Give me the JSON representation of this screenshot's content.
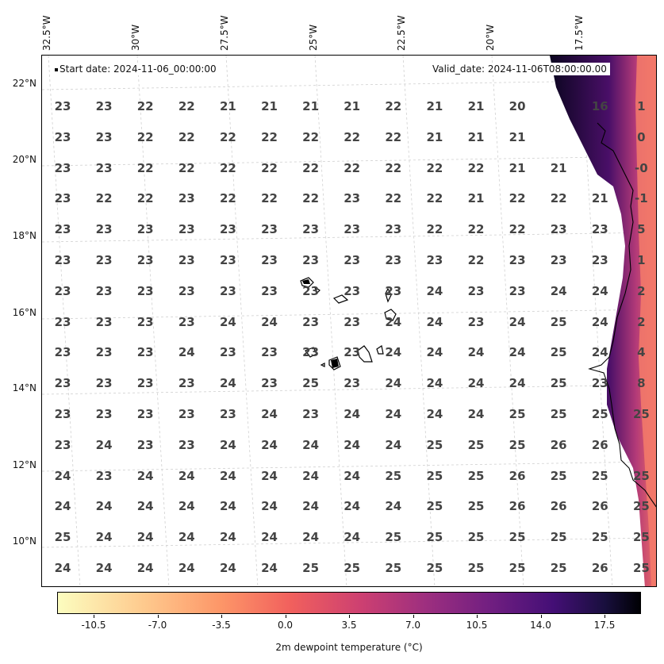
{
  "map": {
    "start_date_label": "Start date: 2024-11-06_00:00:00",
    "valid_date_label": "Valid_date: 2024-11-06T08:00:00.00",
    "variable": "2m dewpoint temperature",
    "lon_labels": [
      "32.5°W",
      "30°W",
      "27.5°W",
      "25°W",
      "22.5°W",
      "20°W",
      "17.5°W"
    ],
    "lat_labels": [
      "22°N",
      "20°N",
      "18°N",
      "16°N",
      "14°N",
      "12°N",
      "10°N"
    ],
    "grid_values": [
      [
        "23",
        "23",
        "22",
        "22",
        "21",
        "21",
        "21",
        "21",
        "22",
        "21",
        "21",
        "20",
        "",
        "16",
        "1"
      ],
      [
        "23",
        "23",
        "22",
        "22",
        "22",
        "22",
        "22",
        "22",
        "22",
        "21",
        "21",
        "21",
        "",
        "",
        "0"
      ],
      [
        "23",
        "23",
        "22",
        "22",
        "22",
        "22",
        "22",
        "22",
        "22",
        "22",
        "22",
        "21",
        "21",
        "",
        "-0"
      ],
      [
        "23",
        "22",
        "22",
        "23",
        "22",
        "22",
        "22",
        "23",
        "22",
        "22",
        "21",
        "22",
        "22",
        "21",
        "-1"
      ],
      [
        "23",
        "23",
        "23",
        "23",
        "23",
        "23",
        "23",
        "23",
        "23",
        "22",
        "22",
        "22",
        "23",
        "23",
        "5"
      ],
      [
        "23",
        "23",
        "23",
        "23",
        "23",
        "23",
        "23",
        "23",
        "23",
        "23",
        "22",
        "23",
        "23",
        "23",
        "1"
      ],
      [
        "23",
        "23",
        "23",
        "23",
        "23",
        "23",
        "23",
        "23",
        "23",
        "24",
        "23",
        "23",
        "24",
        "24",
        "2"
      ],
      [
        "23",
        "23",
        "23",
        "23",
        "24",
        "24",
        "23",
        "23",
        "24",
        "24",
        "23",
        "24",
        "25",
        "24",
        "2"
      ],
      [
        "23",
        "23",
        "23",
        "24",
        "23",
        "23",
        "23",
        "23",
        "24",
        "24",
        "24",
        "24",
        "25",
        "24",
        "4"
      ],
      [
        "23",
        "23",
        "23",
        "23",
        "24",
        "23",
        "25",
        "23",
        "24",
        "24",
        "24",
        "24",
        "25",
        "23",
        "8"
      ],
      [
        "23",
        "23",
        "23",
        "23",
        "23",
        "24",
        "23",
        "24",
        "24",
        "24",
        "24",
        "25",
        "25",
        "25",
        "25"
      ],
      [
        "23",
        "24",
        "23",
        "23",
        "24",
        "24",
        "24",
        "24",
        "24",
        "25",
        "25",
        "25",
        "26",
        "26",
        ""
      ],
      [
        "24",
        "23",
        "24",
        "24",
        "24",
        "24",
        "24",
        "24",
        "25",
        "25",
        "25",
        "26",
        "25",
        "25",
        "25"
      ],
      [
        "24",
        "24",
        "24",
        "24",
        "24",
        "24",
        "24",
        "24",
        "24",
        "25",
        "25",
        "26",
        "26",
        "26",
        "25"
      ],
      [
        "25",
        "24",
        "24",
        "24",
        "24",
        "24",
        "24",
        "24",
        "25",
        "25",
        "25",
        "25",
        "25",
        "25",
        "25"
      ],
      [
        "24",
        "24",
        "24",
        "24",
        "24",
        "24",
        "25",
        "25",
        "25",
        "25",
        "25",
        "25",
        "25",
        "26",
        "25"
      ]
    ]
  },
  "colorbar": {
    "label": "2m dewpoint temperature ($^\\circ$C)",
    "label_display": "2m dewpoint temperature (°C)",
    "ticks": [
      "-10.5",
      "-7.0",
      "-3.5",
      "0.0",
      "3.5",
      "7.0",
      "10.5",
      "14.0",
      "17.5"
    ],
    "range": [
      -12.5,
      19.5
    ],
    "colormap": "magma_r"
  }
}
